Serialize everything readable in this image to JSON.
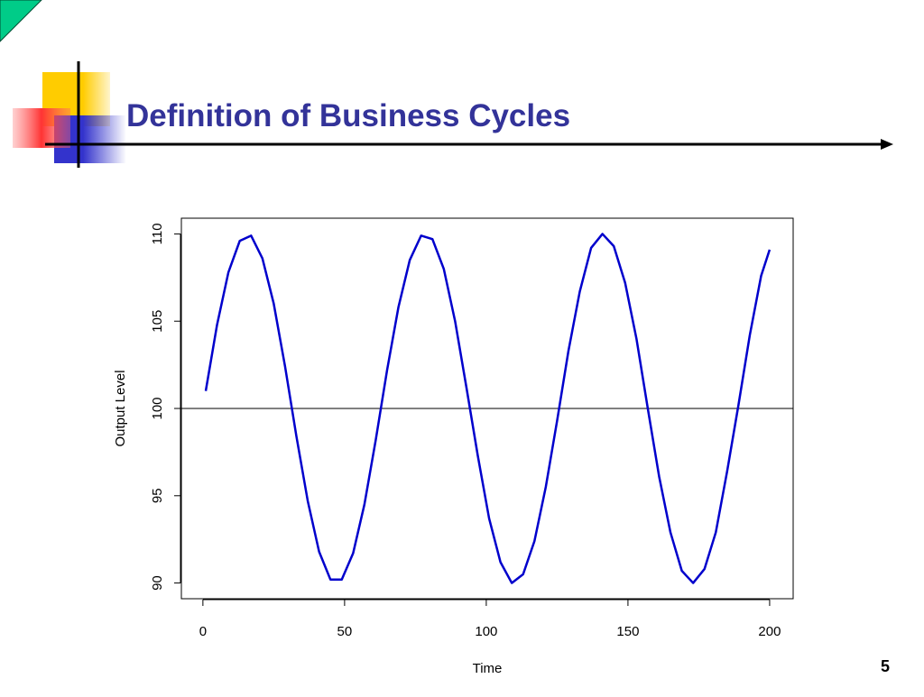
{
  "slide": {
    "title": "Definition of Business Cycles",
    "page_number": "5"
  },
  "chart_data": {
    "type": "line",
    "x_label": "Time",
    "y_label": "Output Level",
    "x": [
      1,
      5,
      9,
      13,
      17,
      21,
      25,
      29,
      33,
      37,
      41,
      45,
      49,
      53,
      57,
      61,
      65,
      69,
      73,
      77,
      81,
      85,
      89,
      93,
      97,
      101,
      105,
      109,
      113,
      117,
      121,
      125,
      129,
      133,
      137,
      141,
      145,
      149,
      153,
      157,
      161,
      165,
      169,
      173,
      177,
      181,
      185,
      189,
      193,
      197,
      200
    ],
    "series": [
      {
        "color": "#0000cc",
        "values": [
          101.0,
          104.8,
          107.8,
          109.6,
          109.9,
          108.6,
          106.0,
          102.4,
          98.4,
          94.7,
          91.8,
          90.2,
          90.2,
          91.7,
          94.5,
          98.2,
          102.2,
          105.8,
          108.5,
          109.9,
          109.7,
          108.0,
          105.0,
          101.2,
          97.3,
          93.7,
          91.2,
          90.0,
          90.5,
          92.4,
          95.5,
          99.3,
          103.3,
          106.7,
          109.2,
          110.0,
          109.3,
          107.2,
          104.0,
          100.0,
          96.1,
          92.9,
          90.7,
          90.0,
          90.8,
          92.9,
          96.4,
          100.2,
          104.2,
          107.6,
          109.1
        ]
      }
    ],
    "reference_line": 100,
    "xlim": [
      -7.6,
      208.3
    ],
    "ylim": [
      89.1,
      110.9
    ],
    "xticks": [
      0,
      50,
      100,
      150,
      200
    ],
    "yticks": [
      90,
      95,
      100,
      105,
      110
    ]
  }
}
